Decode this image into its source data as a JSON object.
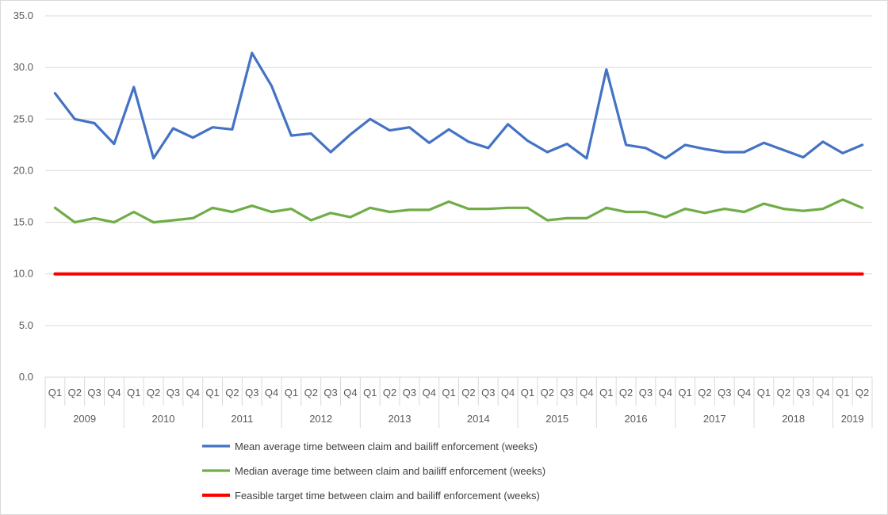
{
  "chart_data": {
    "type": "line",
    "title": "",
    "xlabel": "",
    "ylabel": "",
    "ylim": [
      0,
      35
    ],
    "y_ticks": [
      "0.0",
      "5.0",
      "10.0",
      "15.0",
      "20.0",
      "25.0",
      "30.0",
      "35.0"
    ],
    "grid": "horizontal",
    "legend_position": "bottom",
    "quarters": [
      "Q1",
      "Q2",
      "Q3",
      "Q4",
      "Q1",
      "Q2",
      "Q3",
      "Q4",
      "Q1",
      "Q2",
      "Q3",
      "Q4",
      "Q1",
      "Q2",
      "Q3",
      "Q4",
      "Q1",
      "Q2",
      "Q3",
      "Q4",
      "Q1",
      "Q2",
      "Q3",
      "Q4",
      "Q1",
      "Q2",
      "Q3",
      "Q4",
      "Q1",
      "Q2",
      "Q3",
      "Q4",
      "Q1",
      "Q2",
      "Q3",
      "Q4",
      "Q1",
      "Q2",
      "Q3",
      "Q4",
      "Q1",
      "Q2"
    ],
    "years": [
      {
        "label": "2009",
        "quarters": 4
      },
      {
        "label": "2010",
        "quarters": 4
      },
      {
        "label": "2011",
        "quarters": 4
      },
      {
        "label": "2012",
        "quarters": 4
      },
      {
        "label": "2013",
        "quarters": 4
      },
      {
        "label": "2014",
        "quarters": 4
      },
      {
        "label": "2015",
        "quarters": 4
      },
      {
        "label": "2016",
        "quarters": 4
      },
      {
        "label": "2017",
        "quarters": 4
      },
      {
        "label": "2018",
        "quarters": 4
      },
      {
        "label": "2019",
        "quarters": 2
      }
    ],
    "series": [
      {
        "name": "Mean average time between claim and bailiff enforcement (weeks)",
        "color": "#4472c4",
        "values": [
          27.5,
          25.0,
          24.6,
          22.6,
          28.1,
          21.2,
          24.1,
          23.2,
          24.2,
          24.0,
          31.4,
          28.2,
          23.4,
          23.6,
          21.8,
          23.5,
          25.0,
          23.9,
          24.2,
          22.7,
          24.0,
          22.8,
          22.2,
          24.5,
          22.9,
          21.8,
          22.6,
          21.2,
          29.8,
          22.5,
          22.2,
          21.2,
          22.5,
          22.1,
          21.8,
          21.8,
          22.7,
          22.0,
          21.3,
          22.8,
          21.7,
          22.5
        ]
      },
      {
        "name": "Median average time between claim and bailiff enforcement (weeks)",
        "color": "#70ad47",
        "values": [
          16.4,
          15.0,
          15.4,
          15.0,
          16.0,
          15.0,
          15.2,
          15.4,
          16.4,
          16.0,
          16.6,
          16.0,
          16.3,
          15.2,
          15.9,
          15.5,
          16.4,
          16.0,
          16.2,
          16.2,
          17.0,
          16.3,
          16.3,
          16.4,
          16.4,
          15.2,
          15.4,
          15.4,
          16.4,
          16.0,
          16.0,
          15.5,
          16.3,
          15.9,
          16.3,
          16.0,
          16.8,
          16.3,
          16.1,
          16.3,
          17.2,
          16.4
        ]
      },
      {
        "name": "Feasible target time between claim and bailiff enforcement (weeks)",
        "color": "#ff0000",
        "values": [
          10,
          10,
          10,
          10,
          10,
          10,
          10,
          10,
          10,
          10,
          10,
          10,
          10,
          10,
          10,
          10,
          10,
          10,
          10,
          10,
          10,
          10,
          10,
          10,
          10,
          10,
          10,
          10,
          10,
          10,
          10,
          10,
          10,
          10,
          10,
          10,
          10,
          10,
          10,
          10,
          10,
          10
        ]
      }
    ]
  }
}
